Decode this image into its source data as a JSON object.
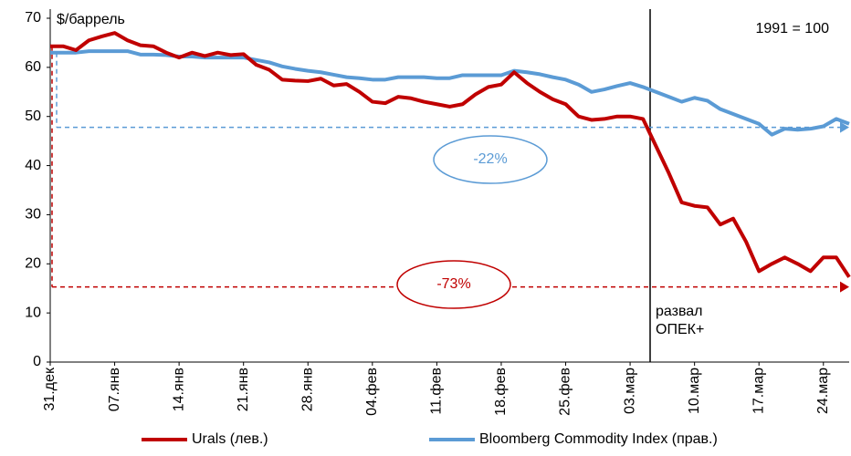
{
  "chart_data": {
    "type": "line",
    "y_unit_label": "$/баррель",
    "right_axis_note": "1991 = 100",
    "categories": [
      "31.дек",
      null,
      null,
      null,
      null,
      "07.янв",
      null,
      null,
      null,
      null,
      "14.янв",
      null,
      null,
      null,
      null,
      "21.янв",
      null,
      null,
      null,
      null,
      "28.янв",
      null,
      null,
      null,
      null,
      "04.фев",
      null,
      null,
      null,
      null,
      "11.фев",
      null,
      null,
      null,
      null,
      "18.фев",
      null,
      null,
      null,
      null,
      "25.фев",
      null,
      null,
      null,
      null,
      "03.мар",
      null,
      null,
      null,
      null,
      "10.мар",
      null,
      null,
      null,
      null,
      "17.мар",
      null,
      null,
      null,
      null,
      "24.мар",
      null,
      null
    ],
    "series": [
      {
        "name": "Urals (лев.)",
        "color": "#c00000",
        "values": [
          64.3,
          64.3,
          63.5,
          65.5,
          66.3,
          67,
          65.5,
          64.5,
          64.3,
          63,
          62,
          63,
          62.3,
          63,
          62.5,
          62.7,
          60.5,
          59.5,
          57.5,
          57.3,
          57.2,
          57.7,
          56.3,
          56.6,
          55,
          53,
          52.7,
          54,
          53.7,
          53,
          52.5,
          52,
          52.5,
          54.5,
          56,
          56.5,
          59,
          56.8,
          55,
          53.5,
          52.5,
          50,
          49.3,
          49.5,
          50,
          50,
          49.5,
          44,
          38.5,
          32.5,
          31.8,
          31.5,
          28,
          29.2,
          24.5,
          18.5,
          20,
          21.3,
          20,
          18.5,
          21.3,
          21.3,
          17.3
        ]
      },
      {
        "name": "Bloomberg Commodity Index (прав.)",
        "color": "#5b9bd5",
        "values": [
          63,
          63,
          63,
          63.3,
          63.3,
          63.3,
          63.3,
          62.6,
          62.6,
          62.5,
          62.2,
          62.2,
          62,
          62,
          62,
          62,
          61.5,
          61,
          60.2,
          59.7,
          59.3,
          59,
          58.5,
          58,
          57.8,
          57.5,
          57.5,
          58,
          58,
          58,
          57.8,
          57.8,
          58.4,
          58.4,
          58.4,
          58.4,
          59.3,
          59,
          58.6,
          58,
          57.5,
          56.5,
          55,
          55.5,
          56.2,
          56.8,
          56,
          55,
          54,
          53,
          53.8,
          53.2,
          51.5,
          50.5,
          49.5,
          48.5,
          46.3,
          47.5,
          47.3,
          47.5,
          48,
          49.5,
          48.5
        ]
      }
    ],
    "annotations": [
      {
        "text": "-22%",
        "color": "#5b9bd5",
        "from": 63,
        "to": 47.8
      },
      {
        "text": "-73%",
        "color": "#c00000",
        "from": 64.3,
        "to": 15.3
      }
    ],
    "event": [
      "развал",
      "ОПЕК+"
    ],
    "ylim": [
      0,
      70
    ],
    "yticks": [
      0,
      10,
      20,
      30,
      40,
      50,
      60,
      70
    ]
  }
}
